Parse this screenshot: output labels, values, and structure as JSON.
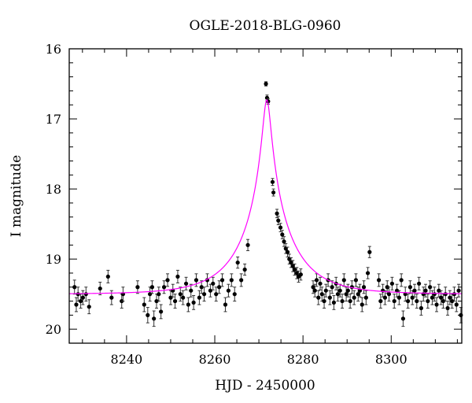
{
  "chart_data": {
    "type": "scatter",
    "title": "OGLE-2018-BLG-0960",
    "xlabel": "HJD - 2450000",
    "ylabel": "I magnitude",
    "xlim": [
      8227,
      8316
    ],
    "ylim": [
      20.2,
      16.0
    ],
    "y_inverted": true,
    "xticks": [
      8240,
      8260,
      8280,
      8300
    ],
    "yticks": [
      16,
      17,
      18,
      19,
      20
    ],
    "grid": false,
    "legend": "none",
    "colors": {
      "points": "#000000",
      "model": "#ff00ff"
    },
    "model": {
      "t0": 8271.8,
      "tE": 11.0,
      "u0": 0.078,
      "baseline": 19.5,
      "fs": 1.0
    },
    "series": [
      {
        "kind": "points-with-errors",
        "x": [
          8228.2,
          8228.6,
          8229.0,
          8229.6,
          8230.1,
          8230.8,
          8231.5,
          8234.0,
          8235.8,
          8236.6,
          8238.9,
          8239.2,
          8242.5,
          8244.0,
          8244.8,
          8245.3,
          8245.8,
          8246.2,
          8246.8,
          8247.3,
          8247.8,
          8248.5,
          8249.3,
          8250.0,
          8250.5,
          8251.0,
          8251.6,
          8252.2,
          8252.8,
          8253.5,
          8254.0,
          8254.6,
          8255.2,
          8255.8,
          8256.5,
          8257.0,
          8257.6,
          8258.3,
          8259.0,
          8259.6,
          8260.3,
          8261.0,
          8261.7,
          8262.4,
          8263.1,
          8263.8,
          8264.5,
          8265.2,
          8266.0,
          8266.8,
          8267.5,
          8271.6,
          8271.85,
          8272.1,
          8273.1,
          8273.3,
          8274.1,
          8274.4,
          8274.9,
          8275.3,
          8275.7,
          8276.1,
          8276.5,
          8276.9,
          8277.3,
          8277.7,
          8278.1,
          8278.6,
          8279.0,
          8279.5,
          8282.3,
          8282.7,
          8283.1,
          8283.5,
          8283.9,
          8284.3,
          8284.8,
          8285.2,
          8285.7,
          8286.1,
          8286.6,
          8287.0,
          8287.5,
          8287.9,
          8288.4,
          8288.9,
          8289.3,
          8289.8,
          8290.2,
          8290.7,
          8291.1,
          8291.6,
          8292.0,
          8292.5,
          8292.9,
          8293.4,
          8293.8,
          8294.3,
          8294.7,
          8295.1,
          8297.2,
          8297.6,
          8298.1,
          8298.6,
          8299.1,
          8299.5,
          8300.2,
          8300.7,
          8301.3,
          8301.8,
          8302.3,
          8302.7,
          8303.2,
          8303.8,
          8304.3,
          8304.8,
          8305.3,
          8305.8,
          8306.3,
          8306.8,
          8307.3,
          8307.8,
          8308.3,
          8308.8,
          8309.3,
          8309.8,
          8310.3,
          8310.8,
          8311.3,
          8311.8,
          8312.3,
          8312.8,
          8313.3,
          8313.8,
          8314.3,
          8314.8,
          8315.3,
          8315.8
        ],
        "y": [
          19.4,
          19.65,
          19.5,
          19.6,
          19.55,
          19.5,
          19.68,
          19.42,
          19.25,
          19.55,
          19.6,
          19.5,
          19.4,
          19.65,
          19.8,
          19.5,
          19.4,
          19.85,
          19.6,
          19.5,
          19.75,
          19.4,
          19.3,
          19.55,
          19.45,
          19.6,
          19.25,
          19.5,
          19.55,
          19.35,
          19.65,
          19.45,
          19.62,
          19.3,
          19.55,
          19.4,
          19.5,
          19.3,
          19.45,
          19.35,
          19.5,
          19.4,
          19.3,
          19.65,
          19.45,
          19.3,
          19.5,
          19.05,
          19.3,
          19.15,
          18.8,
          16.5,
          16.7,
          16.75,
          17.9,
          18.05,
          18.35,
          18.45,
          18.55,
          18.65,
          18.75,
          18.85,
          18.9,
          19.0,
          19.05,
          19.1,
          19.15,
          19.2,
          19.25,
          19.22,
          19.4,
          19.45,
          19.3,
          19.55,
          19.35,
          19.5,
          19.6,
          19.45,
          19.3,
          19.55,
          19.4,
          19.62,
          19.35,
          19.5,
          19.45,
          19.6,
          19.3,
          19.5,
          19.45,
          19.6,
          19.4,
          19.55,
          19.3,
          19.5,
          19.45,
          19.65,
          19.4,
          19.55,
          19.2,
          18.9,
          19.3,
          19.6,
          19.45,
          19.55,
          19.4,
          19.5,
          19.35,
          19.6,
          19.45,
          19.55,
          19.3,
          19.85,
          19.5,
          19.6,
          19.4,
          19.55,
          19.45,
          19.6,
          19.35,
          19.7,
          19.5,
          19.45,
          19.6,
          19.4,
          19.55,
          19.5,
          19.65,
          19.45,
          19.55,
          19.6,
          19.5,
          19.7,
          19.55,
          19.6,
          19.5,
          19.65,
          19.45,
          19.8
        ],
        "yerr": [
          0.1,
          0.1,
          0.1,
          0.1,
          0.1,
          0.1,
          0.1,
          0.09,
          0.09,
          0.1,
          0.1,
          0.1,
          0.09,
          0.1,
          0.11,
          0.1,
          0.09,
          0.11,
          0.1,
          0.1,
          0.1,
          0.09,
          0.09,
          0.1,
          0.09,
          0.1,
          0.09,
          0.1,
          0.1,
          0.09,
          0.1,
          0.09,
          0.1,
          0.09,
          0.1,
          0.09,
          0.1,
          0.09,
          0.09,
          0.09,
          0.1,
          0.09,
          0.09,
          0.1,
          0.09,
          0.09,
          0.1,
          0.08,
          0.09,
          0.08,
          0.08,
          0.03,
          0.04,
          0.04,
          0.05,
          0.05,
          0.06,
          0.06,
          0.06,
          0.06,
          0.07,
          0.07,
          0.07,
          0.07,
          0.07,
          0.08,
          0.08,
          0.08,
          0.08,
          0.08,
          0.09,
          0.09,
          0.09,
          0.1,
          0.09,
          0.1,
          0.1,
          0.09,
          0.09,
          0.1,
          0.09,
          0.1,
          0.09,
          0.1,
          0.09,
          0.1,
          0.09,
          0.1,
          0.09,
          0.1,
          0.09,
          0.1,
          0.09,
          0.1,
          0.09,
          0.1,
          0.09,
          0.1,
          0.08,
          0.08,
          0.09,
          0.1,
          0.09,
          0.1,
          0.09,
          0.1,
          0.09,
          0.1,
          0.09,
          0.1,
          0.09,
          0.11,
          0.1,
          0.1,
          0.09,
          0.1,
          0.09,
          0.1,
          0.09,
          0.1,
          0.1,
          0.09,
          0.1,
          0.09,
          0.1,
          0.1,
          0.1,
          0.09,
          0.1,
          0.1,
          0.1,
          0.1,
          0.1,
          0.1,
          0.1,
          0.1,
          0.09,
          0.11
        ]
      }
    ]
  }
}
